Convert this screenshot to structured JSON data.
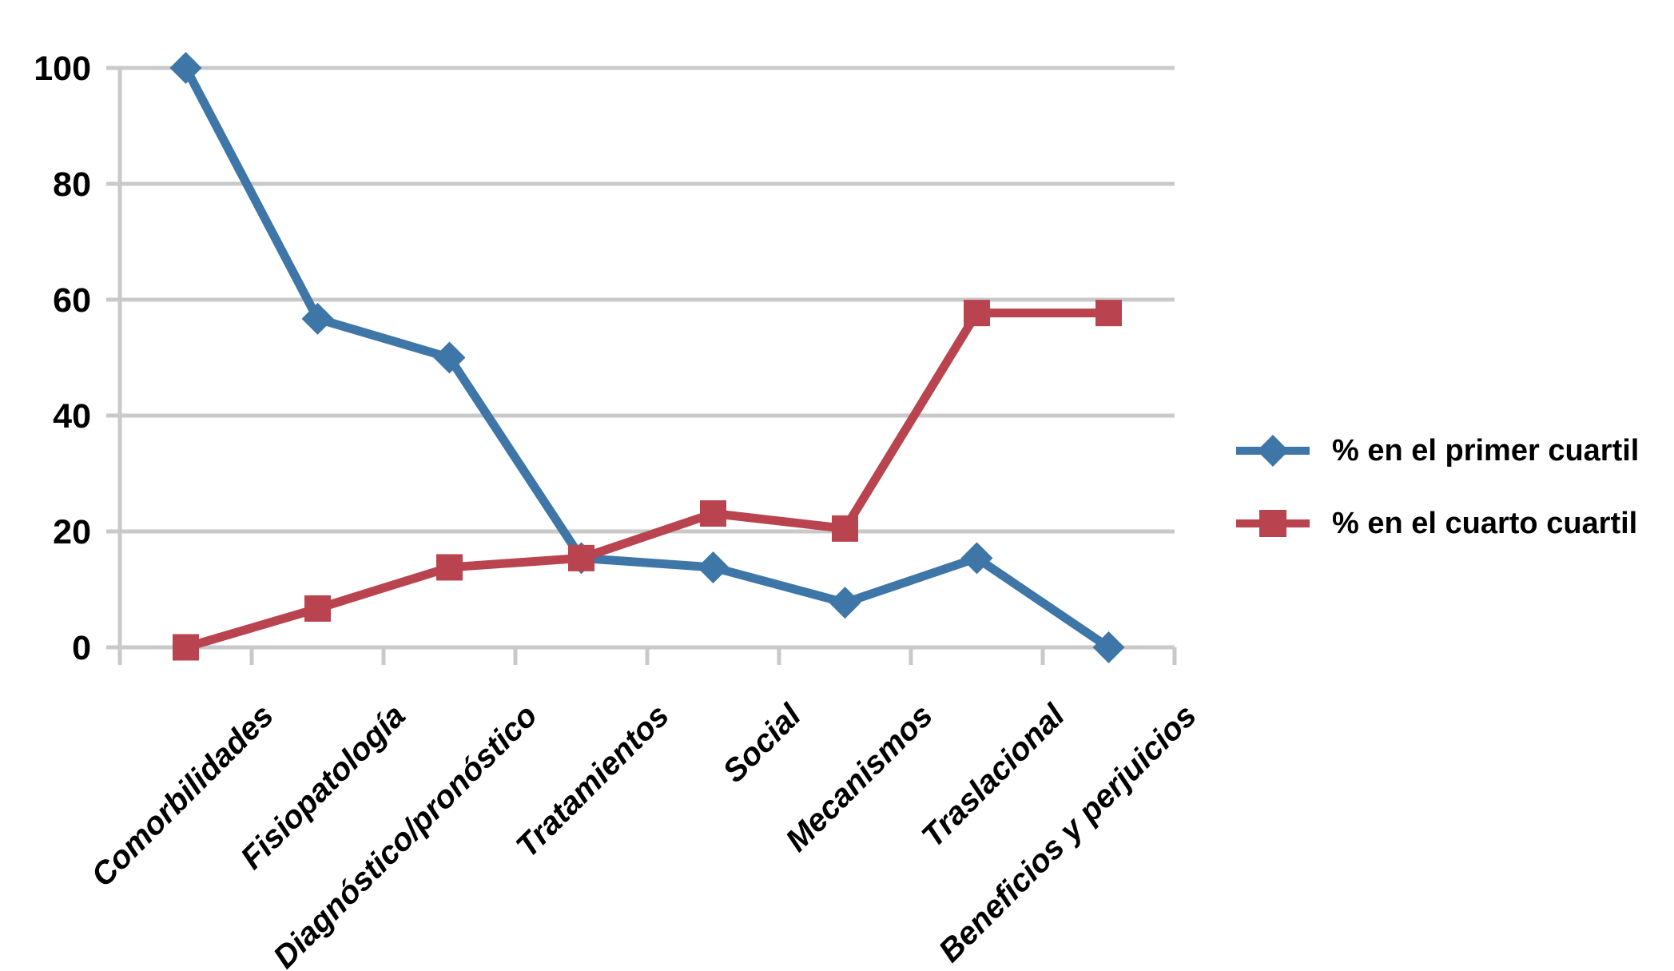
{
  "chart_data": {
    "type": "line",
    "title": "",
    "xlabel": "",
    "ylabel": "",
    "categories": [
      "Comorbilidades",
      "Fisiopatología",
      "Diagnóstico/pronóstico",
      "Tratamientos",
      "Social",
      "Mecanismos",
      "Traslacional",
      "Beneficios y perjuicios"
    ],
    "series": [
      {
        "name": "% en el primer cuartil",
        "marker": "diamond",
        "color": "#3E76A8",
        "values": [
          100,
          56.7,
          50,
          15.4,
          13.8,
          7.7,
          15.4,
          0
        ]
      },
      {
        "name": "% en el cuarto cuartil",
        "marker": "square",
        "color": "#B9444F",
        "values": [
          0,
          6.7,
          13.8,
          15.4,
          23.1,
          20.5,
          57.7,
          57.7
        ]
      }
    ],
    "ylim": [
      0,
      100
    ],
    "yticks": [
      0,
      20,
      40,
      60,
      80,
      100
    ],
    "grid": true,
    "legend_position": "right",
    "axis_color": "#C9C9C9",
    "label_color": "#000000",
    "background": "#FFFFFF"
  }
}
